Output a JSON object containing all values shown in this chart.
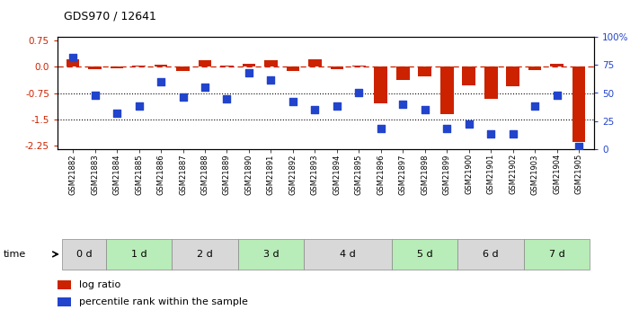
{
  "title": "GDS970 / 12641",
  "samples": [
    "GSM21882",
    "GSM21883",
    "GSM21884",
    "GSM21885",
    "GSM21886",
    "GSM21887",
    "GSM21888",
    "GSM21889",
    "GSM21890",
    "GSM21891",
    "GSM21892",
    "GSM21893",
    "GSM21894",
    "GSM21895",
    "GSM21896",
    "GSM21897",
    "GSM21898",
    "GSM21899",
    "GSM21900",
    "GSM21901",
    "GSM21902",
    "GSM21903",
    "GSM21904",
    "GSM21905"
  ],
  "log_ratio": [
    0.22,
    -0.08,
    -0.05,
    0.04,
    0.05,
    -0.12,
    0.18,
    0.04,
    0.08,
    0.18,
    -0.12,
    0.22,
    -0.08,
    0.03,
    -1.05,
    -0.38,
    -0.28,
    -1.35,
    -0.52,
    -0.92,
    -0.55,
    -0.1,
    0.08,
    -2.15
  ],
  "percentile_rank": [
    82,
    48,
    32,
    38,
    60,
    46,
    55,
    45,
    68,
    62,
    42,
    35,
    38,
    50,
    18,
    40,
    35,
    18,
    22,
    13,
    13,
    38,
    48,
    2
  ],
  "time_groups": [
    {
      "label": "0 d",
      "start": 0,
      "end": 2,
      "color": "#d8d8d8"
    },
    {
      "label": "1 d",
      "start": 2,
      "end": 5,
      "color": "#b8ecb8"
    },
    {
      "label": "2 d",
      "start": 5,
      "end": 8,
      "color": "#d8d8d8"
    },
    {
      "label": "3 d",
      "start": 8,
      "end": 11,
      "color": "#b8ecb8"
    },
    {
      "label": "4 d",
      "start": 11,
      "end": 15,
      "color": "#d8d8d8"
    },
    {
      "label": "5 d",
      "start": 15,
      "end": 18,
      "color": "#b8ecb8"
    },
    {
      "label": "6 d",
      "start": 18,
      "end": 21,
      "color": "#d8d8d8"
    },
    {
      "label": "7 d",
      "start": 21,
      "end": 24,
      "color": "#b8ecb8"
    }
  ],
  "sample_groups": [
    {
      "start": 0,
      "end": 2,
      "color": "#d8d8d8"
    },
    {
      "start": 2,
      "end": 5,
      "color": "#e8e8e8"
    },
    {
      "start": 5,
      "end": 8,
      "color": "#d8d8d8"
    },
    {
      "start": 8,
      "end": 11,
      "color": "#e8e8e8"
    },
    {
      "start": 11,
      "end": 15,
      "color": "#d8d8d8"
    },
    {
      "start": 15,
      "end": 18,
      "color": "#e8e8e8"
    },
    {
      "start": 18,
      "end": 21,
      "color": "#d8d8d8"
    },
    {
      "start": 21,
      "end": 24,
      "color": "#e8e8e8"
    }
  ],
  "ylim_left": [
    -2.35,
    0.85
  ],
  "ylim_right": [
    0,
    100
  ],
  "yticks_left": [
    0.75,
    0.0,
    -0.75,
    -1.5,
    -2.25
  ],
  "yticks_right": [
    100,
    75,
    50,
    25,
    0
  ],
  "hlines": [
    0,
    -0.75,
    -1.5
  ],
  "bar_color": "#cc2200",
  "dot_color": "#2244cc",
  "bar_width": 0.6,
  "dot_size": 40,
  "legend_red": "log ratio",
  "legend_blue": "percentile rank within the sample",
  "time_label": "time"
}
